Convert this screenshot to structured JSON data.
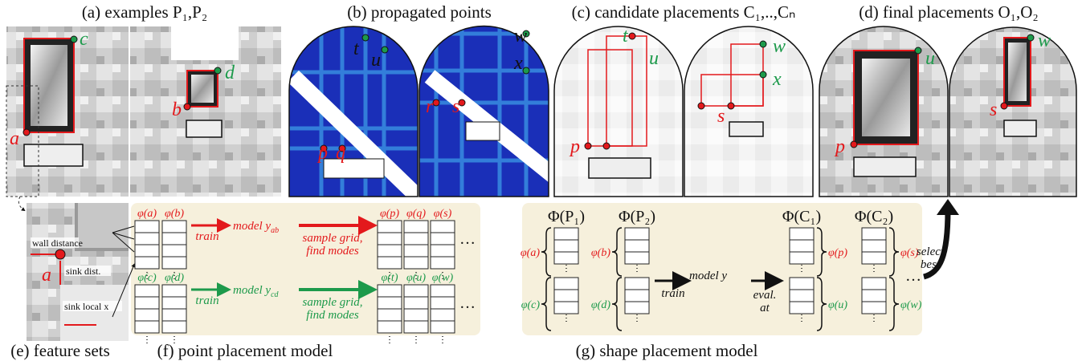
{
  "panels": {
    "a": {
      "caption": "(a) examples  P₁,P₂",
      "points": [
        "a",
        "c",
        "b",
        "d"
      ]
    },
    "b": {
      "caption": "(b) propagated points",
      "points": [
        "t",
        "u",
        "p",
        "q",
        "w",
        "x",
        "r",
        "s"
      ]
    },
    "c": {
      "caption": "(c) candidate placements C₁,..,Cₙ",
      "points": [
        "t",
        "u",
        "p",
        "w",
        "x",
        "s"
      ]
    },
    "d": {
      "caption": "(d) final placements O₁,O₂",
      "points": [
        "u",
        "p",
        "w",
        "s"
      ]
    },
    "e": {
      "caption": "(e) feature sets",
      "labels": [
        "wall distance",
        "sink dist.",
        "sink local x",
        "a"
      ]
    },
    "f": {
      "caption": "(f) point placement model",
      "rows": [
        {
          "inputs": [
            "φ(a)",
            "φ(b)"
          ],
          "action": "train",
          "model": "model y",
          "model_sub": "ab",
          "step": [
            "sample grid,",
            "find modes"
          ],
          "outputs": [
            "φ(p)",
            "φ(q)",
            "φ(s)"
          ],
          "ellipsis": "…"
        },
        {
          "inputs": [
            "φ(c)",
            "φ(d)"
          ],
          "action": "train",
          "model": "model y",
          "model_sub": "cd",
          "step": [
            "sample grid,",
            "find modes"
          ],
          "outputs": [
            "φ(t)",
            "φ(u)",
            "φ(w)"
          ],
          "ellipsis": "…"
        }
      ]
    },
    "g": {
      "caption": "(g) shape placement model",
      "sets": [
        "Φ(P₁)",
        "Φ(P₂)",
        "Φ(C₁)",
        "Φ(C₂)"
      ],
      "features": [
        [
          "φ(a)",
          "φ(c)"
        ],
        [
          "φ(b)",
          "φ(d)"
        ],
        [
          "φ(p)",
          "φ(u)"
        ],
        [
          "φ(s)",
          "φ(w)"
        ]
      ],
      "action": "train",
      "model": "model y",
      "eval": [
        "eval.",
        "at"
      ],
      "ellipsis": "…",
      "select": [
        "select",
        "best"
      ]
    }
  }
}
